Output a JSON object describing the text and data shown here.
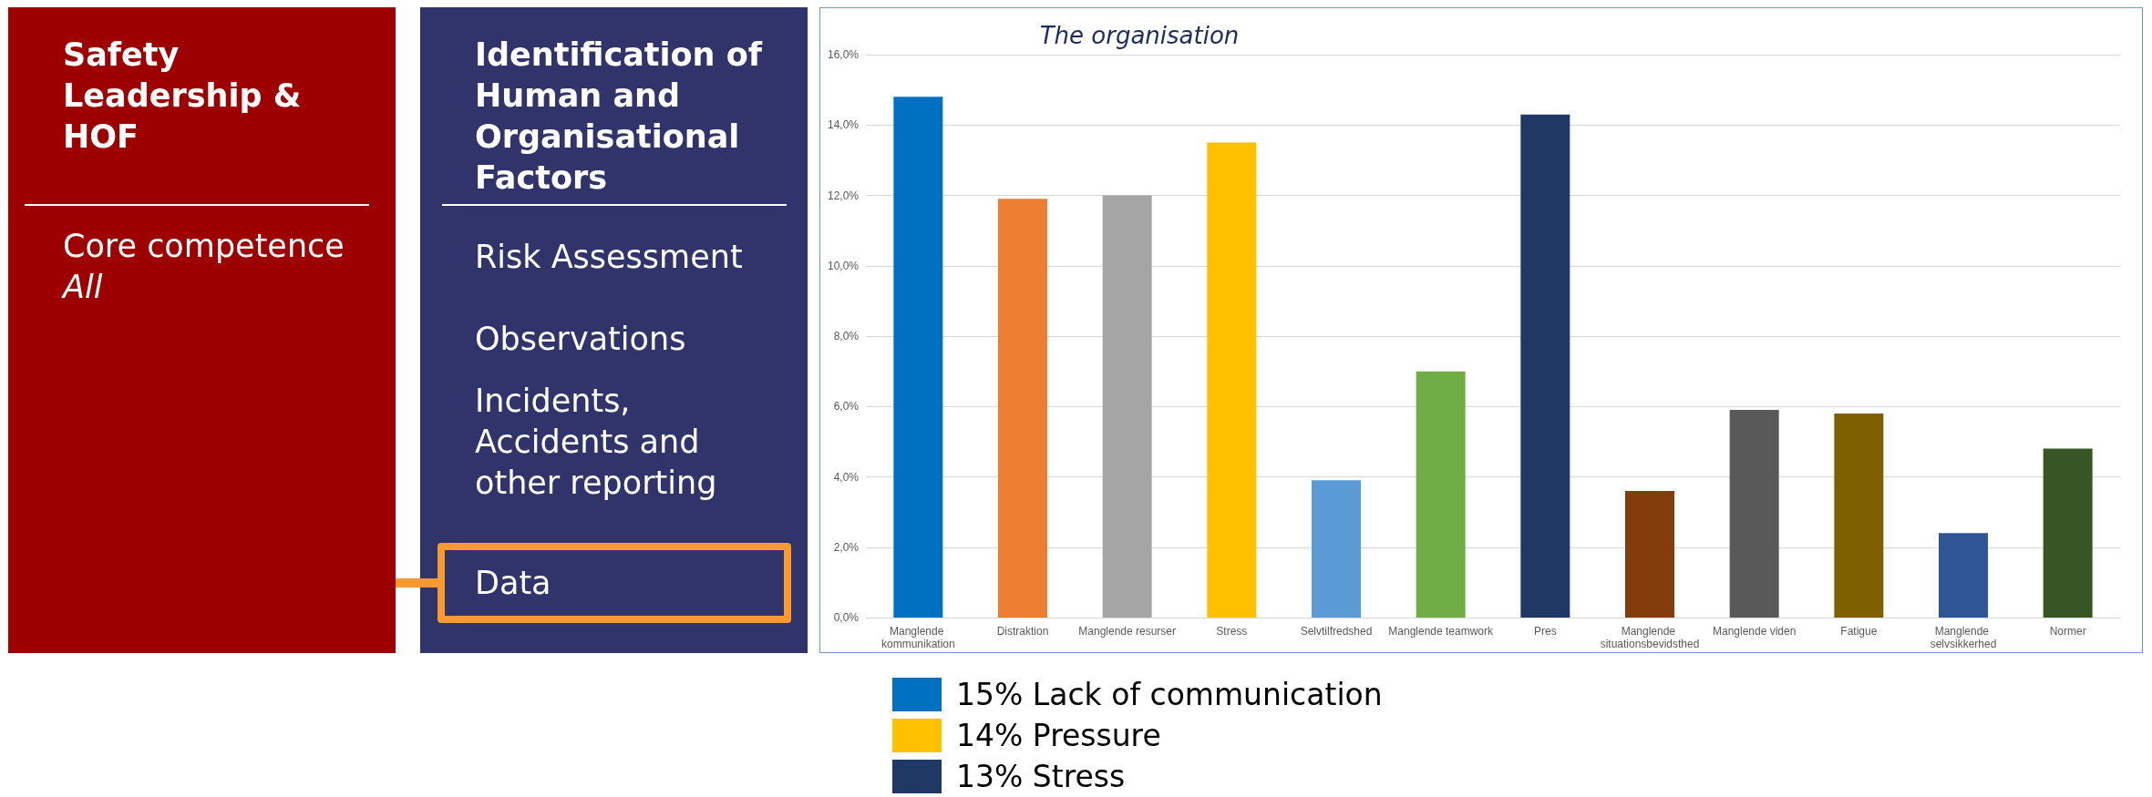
{
  "chart_data": [
    {
      "type": "other",
      "title": "Safety Leadership & HOF",
      "annotations": [
        "Core competence",
        "All"
      ]
    },
    {
      "type": "other",
      "title": "Identification of Human and Organisational Factors",
      "annotations": [
        "Risk Assessment",
        "Observations",
        "Incidents, Accidents and other reporting",
        "Data"
      ]
    },
    {
      "type": "bar",
      "title": "The organisation",
      "categories": [
        "Manglende kommunikation",
        "Distraktion",
        "Manglende resurser",
        "Stress",
        "Selvtilfredshed",
        "Manglende teamwork",
        "Pres",
        "Manglende situationsbevidsthed",
        "Manglende viden",
        "Fatigue",
        "Manglende selvsikkerhed",
        "Normer"
      ],
      "values": [
        14.8,
        11.9,
        12.0,
        13.5,
        3.9,
        7.0,
        14.3,
        3.6,
        5.9,
        5.8,
        2.4,
        4.8
      ],
      "colors": [
        "#0070c0",
        "#ed7d31",
        "#a5a5a5",
        "#ffc000",
        "#5b9bd5",
        "#70ad47",
        "#203864",
        "#843c0c",
        "#595959",
        "#7f6000",
        "#2f5597",
        "#375623"
      ],
      "ylim": [
        0,
        16
      ],
      "yticks": [
        {
          "value": 0,
          "label": "0,0%"
        },
        {
          "value": 2,
          "label": "2,0%"
        },
        {
          "value": 4,
          "label": "4,0%"
        },
        {
          "value": 6,
          "label": "6,0%"
        },
        {
          "value": 8,
          "label": "8,0%"
        },
        {
          "value": 10,
          "label": "10,0%"
        },
        {
          "value": 12,
          "label": "12,0%"
        },
        {
          "value": 14,
          "label": "14,0%"
        },
        {
          "value": 16,
          "label": "16,0%"
        }
      ],
      "grid": "y"
    },
    {
      "type": "other",
      "annotations": [
        "15% Lack of communication",
        "14% Pressure",
        "13% Stress"
      ],
      "colors": [
        "#0070c0",
        "#ffc000",
        "#203864"
      ]
    }
  ]
}
